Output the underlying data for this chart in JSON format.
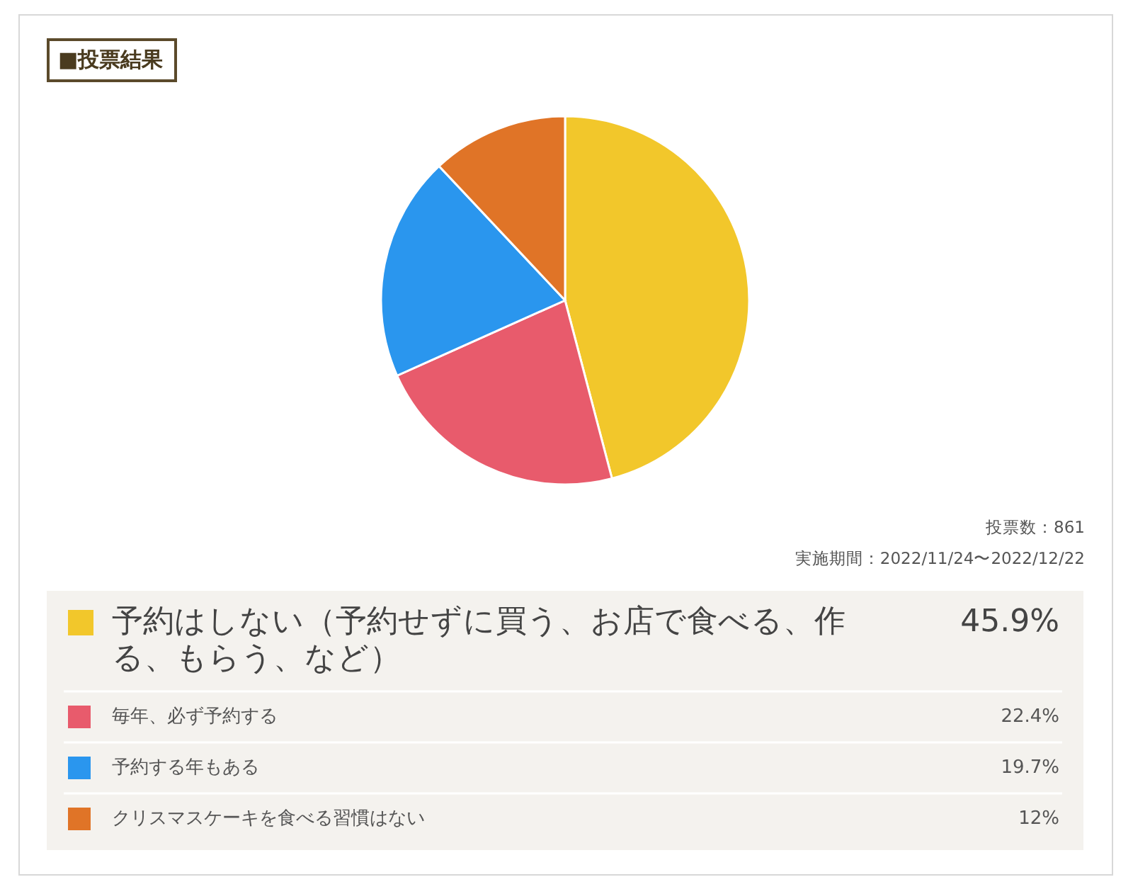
{
  "chart_data": {
    "type": "pie",
    "title": "■投票結果",
    "categories": [
      "予約はしない（予約せずに買う、お店で食べる、作る、もらう、など）",
      "毎年、必ず予約する",
      "予約する年もある",
      "クリスマスケーキを食べる習慣はない"
    ],
    "values": [
      45.9,
      22.4,
      19.7,
      12
    ],
    "colors": [
      "#f2c72b",
      "#e85b6c",
      "#2a96ee",
      "#e07427"
    ],
    "value_labels": [
      "45.9%",
      "22.4%",
      "19.7%",
      "12%"
    ],
    "legend": "bottom",
    "annotations": [
      "投票数：861",
      "実施期間：2022/11/24〜2022/12/22"
    ]
  }
}
